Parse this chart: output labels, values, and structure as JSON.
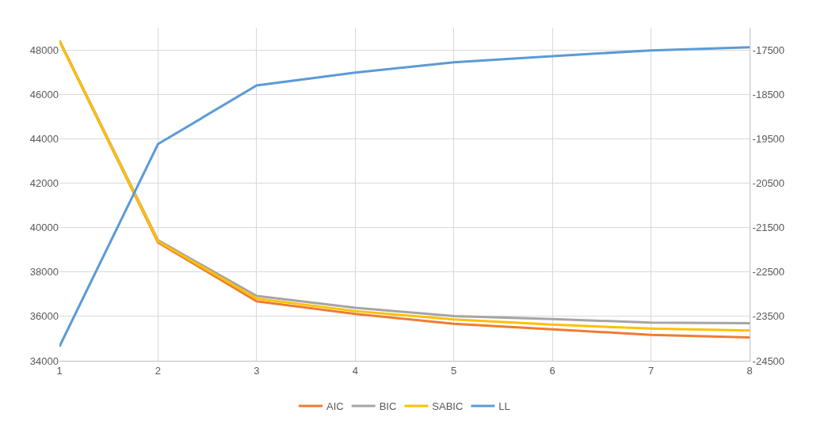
{
  "chart_data": {
    "type": "line",
    "x": [
      1,
      2,
      3,
      4,
      5,
      6,
      7,
      8
    ],
    "series": [
      {
        "name": "AIC",
        "color": "#ed7d31",
        "values": [
          48400,
          39330,
          36680,
          36110,
          35670,
          35420,
          35170,
          35050
        ]
      },
      {
        "name": "BIC",
        "color": "#a5a5a5",
        "values": [
          48430,
          39430,
          36920,
          36390,
          36010,
          35880,
          35720,
          35690
        ]
      },
      {
        "name": "SABIC",
        "color": "#ffc000",
        "values": [
          48410,
          39380,
          36800,
          36240,
          35860,
          35630,
          35450,
          35360
        ]
      },
      {
        "name": "LL",
        "color": "#5b9bd5",
        "axis": "y2",
        "values": [
          -24180,
          -19620,
          -18300,
          -18010,
          -17780,
          -17640,
          -17510,
          -17440
        ]
      }
    ],
    "xlim": [
      1,
      8
    ],
    "xticks": [
      1,
      2,
      3,
      4,
      5,
      6,
      7,
      8
    ],
    "ylim": [
      34000,
      49000
    ],
    "yticks": [
      34000,
      36000,
      38000,
      40000,
      42000,
      44000,
      46000,
      48000
    ],
    "y2lim": [
      -24500,
      -17000
    ],
    "y2ticks": [
      -24500,
      -23500,
      -22500,
      -21500,
      -20500,
      -19500,
      -18500,
      -17500
    ],
    "grid": true,
    "legend": "bottom",
    "marker": "none",
    "line_style": "solid"
  }
}
